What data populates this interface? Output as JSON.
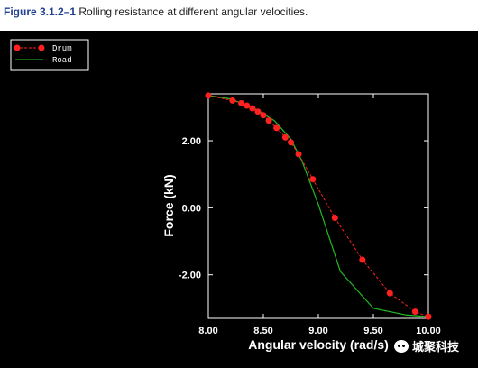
{
  "caption": {
    "figure_label": "Figure 3.1.2–1",
    "text": " Rolling resistance at different angular velocities."
  },
  "watermark": {
    "text": "城聚科技",
    "icon": "wechat-icon"
  },
  "colors": {
    "drum": "#ff2020",
    "road": "#22bb22",
    "background": "#000000",
    "axes": "#ffffff"
  },
  "chart_data": {
    "type": "line",
    "title": "",
    "xlabel": "Angular velocity (rad/s)",
    "ylabel": "Force (kN)",
    "xlim": [
      8.0,
      10.0
    ],
    "ylim": [
      -3.3,
      3.4
    ],
    "xticks": [
      8.0,
      8.5,
      9.0,
      9.5,
      10.0
    ],
    "xtick_labels": [
      "8.00",
      "8.50",
      "9.00",
      "9.50",
      "10.00"
    ],
    "yticks": [
      2.0,
      0.0,
      -2.0
    ],
    "ytick_labels": [
      "2.00",
      "0.00",
      "-2.00"
    ],
    "grid": false,
    "legend_position": "top-left",
    "series": [
      {
        "name": "Drum",
        "style": "dashed-line-with-markers",
        "x": [
          8.0,
          8.22,
          8.3,
          8.35,
          8.4,
          8.45,
          8.5,
          8.55,
          8.62,
          8.7,
          8.75,
          8.82,
          8.95,
          9.15,
          9.4,
          9.65,
          9.88,
          10.0
        ],
        "y": [
          3.35,
          3.2,
          3.12,
          3.05,
          2.97,
          2.87,
          2.76,
          2.6,
          2.38,
          2.1,
          1.95,
          1.6,
          0.85,
          -0.3,
          -1.55,
          -2.55,
          -3.1,
          -3.25
        ]
      },
      {
        "name": "Road",
        "style": "solid-line",
        "x": [
          8.0,
          8.2,
          8.4,
          8.6,
          8.75,
          8.85,
          9.0,
          9.2,
          9.5,
          9.8,
          10.0
        ],
        "y": [
          3.35,
          3.25,
          3.0,
          2.6,
          2.05,
          1.4,
          0.1,
          -1.9,
          -3.0,
          -3.2,
          -3.25
        ]
      }
    ]
  }
}
